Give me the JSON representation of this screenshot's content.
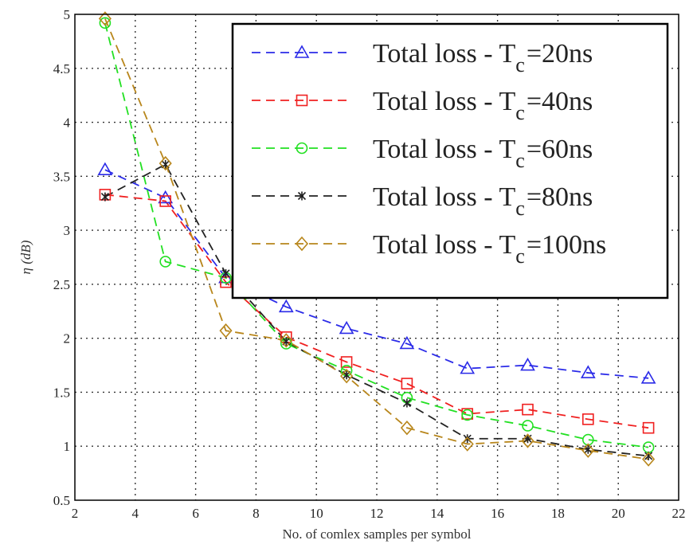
{
  "chart_data": {
    "type": "line",
    "title": "",
    "xlabel": "No. of comlex samples per symbol",
    "ylabel": "η (dB)",
    "xlim": [
      2,
      22
    ],
    "ylim": [
      0.5,
      5
    ],
    "xticks": [
      "2",
      "4",
      "6",
      "8",
      "10",
      "12",
      "14",
      "16",
      "18",
      "20",
      "22"
    ],
    "yticks": [
      "0.5",
      "1",
      "1.5",
      "2",
      "2.5",
      "3",
      "3.5",
      "4",
      "4.5",
      "5"
    ],
    "grid": true,
    "legend_position": "top-right",
    "x": [
      3,
      5,
      7,
      9,
      11,
      13,
      15,
      17,
      19,
      21
    ],
    "series": [
      {
        "name": "Total loss - T_c =20ns",
        "legend_prefix": "Total loss - T",
        "legend_sub": "c",
        "legend_suffix": "=20ns",
        "color": "#2b2be8",
        "marker": "triangle",
        "values": [
          3.56,
          3.3,
          2.56,
          2.29,
          2.09,
          1.95,
          1.72,
          1.75,
          1.68,
          1.63
        ]
      },
      {
        "name": "Total loss - T_c =40ns",
        "legend_prefix": "Total loss - T",
        "legend_sub": "c",
        "legend_suffix": "=40ns",
        "color": "#f02020",
        "marker": "square",
        "values": [
          3.33,
          3.27,
          2.52,
          2.01,
          1.78,
          1.58,
          1.3,
          1.34,
          1.25,
          1.17
        ]
      },
      {
        "name": "Total loss - T_c =60ns",
        "legend_prefix": "Total loss - T",
        "legend_sub": "c",
        "legend_suffix": "=60ns",
        "color": "#22e022",
        "marker": "circle",
        "values": [
          4.92,
          2.71,
          2.56,
          1.95,
          1.7,
          1.45,
          1.29,
          1.19,
          1.06,
          0.99
        ]
      },
      {
        "name": "Total loss - T_c =80ns",
        "legend_prefix": "Total loss - T",
        "legend_sub": "c",
        "legend_suffix": "=80ns",
        "color": "#222222",
        "marker": "star",
        "values": [
          3.31,
          3.61,
          2.6,
          1.97,
          1.66,
          1.4,
          1.07,
          1.07,
          0.97,
          0.91
        ]
      },
      {
        "name": "Total loss - T_c =100ns",
        "legend_prefix": "Total loss - T",
        "legend_sub": "c",
        "legend_suffix": "=100ns",
        "color": "#b8861b",
        "marker": "diamond",
        "values": [
          4.96,
          3.62,
          2.07,
          1.98,
          1.65,
          1.17,
          1.02,
          1.05,
          0.96,
          0.88
        ]
      }
    ]
  }
}
